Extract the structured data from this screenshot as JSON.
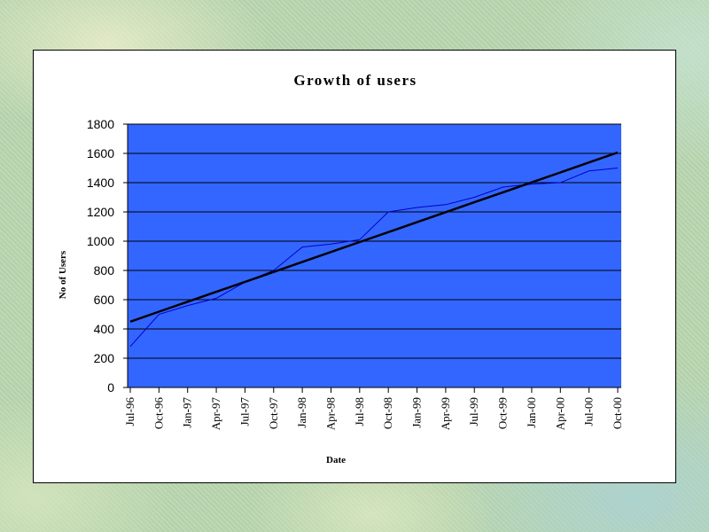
{
  "chart_data": {
    "type": "line",
    "title": "Growth of users",
    "xlabel": "Date",
    "ylabel": "No of Users",
    "ylim": [
      0,
      1800
    ],
    "yticks": [
      0,
      200,
      400,
      600,
      800,
      1000,
      1200,
      1400,
      1600,
      1800
    ],
    "categories": [
      "Jul-96",
      "Oct-96",
      "Jan-97",
      "Apr-97",
      "Jul-97",
      "Oct-97",
      "Jan-98",
      "Apr-98",
      "Jul-98",
      "Oct-98",
      "Jan-99",
      "Apr-99",
      "Jul-99",
      "Oct-99",
      "Jan-00",
      "Apr-00",
      "Jul-00",
      "Oct-00"
    ],
    "series": [
      {
        "values": [
          280,
          500,
          560,
          610,
          720,
          800,
          960,
          980,
          1010,
          1200,
          1230,
          1250,
          1300,
          1370,
          1390,
          1400,
          1480,
          1500
        ],
        "color": "#0000cc"
      },
      {
        "values": [
          450,
          518,
          586,
          654,
          722,
          790,
          858,
          926,
          994,
          1062,
          1130,
          1198,
          1266,
          1334,
          1402,
          1470,
          1538,
          1606
        ],
        "color": "#000000",
        "trendline": true
      }
    ],
    "plot_background": "#3366ff",
    "gridlines": "horizontal",
    "legend": "none"
  }
}
